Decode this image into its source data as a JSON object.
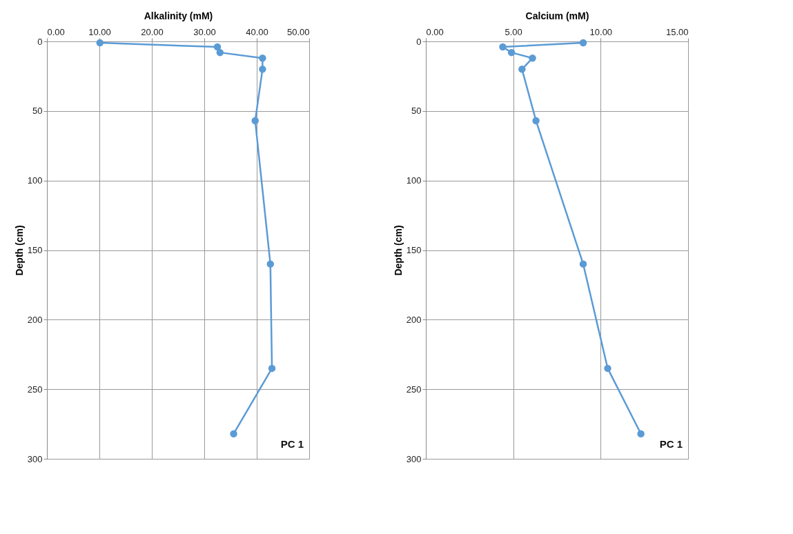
{
  "chart_data": [
    {
      "type": "line",
      "xlabel": "Alkalinity (mM)",
      "ylabel": "Depth (cm)",
      "annotations": [
        "PC 1"
      ],
      "x": [
        10.1,
        32.5,
        33.0,
        41.1,
        41.1,
        39.7,
        42.6,
        42.9,
        35.6
      ],
      "series": [
        {
          "color": "#5b9bd5",
          "values": [
            1,
            4,
            8,
            12,
            20,
            57,
            160,
            235,
            282
          ]
        }
      ],
      "xlim": [
        0,
        50
      ],
      "xticks": [
        {
          "value": 0,
          "label": "0.00"
        },
        {
          "value": 10,
          "label": "10.00"
        },
        {
          "value": 20,
          "label": "20.00"
        },
        {
          "value": 30,
          "label": "30.00"
        },
        {
          "value": 40,
          "label": "40.00"
        },
        {
          "value": 50,
          "label": "50.00"
        }
      ],
      "ylim": [
        300,
        0
      ],
      "yticks": [
        0,
        50,
        100,
        150,
        200,
        250,
        300
      ],
      "grid": true,
      "marker": "circle",
      "line_style": "solid"
    },
    {
      "type": "line",
      "xlabel": "Calcium (mM)",
      "ylabel": "Depth (cm)",
      "annotations": [
        "PC 1"
      ],
      "x": [
        9.0,
        4.4,
        4.9,
        6.1,
        5.5,
        6.3,
        9.0,
        10.4,
        12.3
      ],
      "series": [
        {
          "color": "#5b9bd5",
          "values": [
            1,
            4,
            8,
            12,
            20,
            57,
            160,
            235,
            282
          ]
        }
      ],
      "xlim": [
        0,
        15
      ],
      "xticks": [
        {
          "value": 0,
          "label": "0.00"
        },
        {
          "value": 5,
          "label": "5.00"
        },
        {
          "value": 10,
          "label": "10.00"
        },
        {
          "value": 15,
          "label": "15.00"
        }
      ],
      "ylim": [
        300,
        0
      ],
      "yticks": [
        0,
        50,
        100,
        150,
        200,
        250,
        300
      ],
      "grid": true,
      "marker": "circle",
      "line_style": "solid"
    }
  ]
}
